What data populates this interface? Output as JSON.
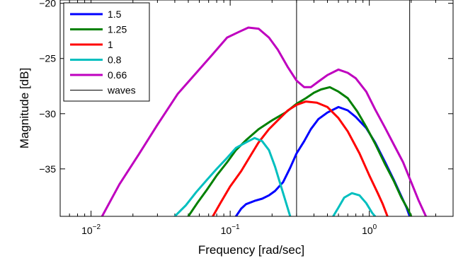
{
  "chart_data": {
    "type": "line",
    "title": "",
    "xlabel": "Frequency [rad/sec]",
    "ylabel": "Magnitude [dB]",
    "xscale": "log",
    "xlim": [
      0.006,
      4.0
    ],
    "ylim": [
      -39.3,
      -19.7
    ],
    "grid": false,
    "legend_placement": "top-left",
    "x_ticks": [
      {
        "value": 0.01,
        "base": "10",
        "exp": "−2"
      },
      {
        "value": 0.1,
        "base": "10",
        "exp": "−1"
      },
      {
        "value": 1,
        "base": "10",
        "exp": "0"
      }
    ],
    "y_ticks": [
      {
        "value": -20,
        "label": "−20"
      },
      {
        "value": -25,
        "label": "−25"
      },
      {
        "value": -30,
        "label": "−30"
      },
      {
        "value": -35,
        "label": "−35"
      }
    ],
    "series": [
      {
        "name": "1.5",
        "color": "#0000ff",
        "points": [
          [
            0.11,
            -39.3
          ],
          [
            0.12,
            -38.6
          ],
          [
            0.13,
            -38.2
          ],
          [
            0.15,
            -37.9
          ],
          [
            0.17,
            -37.7
          ],
          [
            0.19,
            -37.4
          ],
          [
            0.21,
            -37.0
          ],
          [
            0.24,
            -36.2
          ],
          [
            0.27,
            -34.9
          ],
          [
            0.3,
            -33.6
          ],
          [
            0.34,
            -32.5
          ],
          [
            0.38,
            -31.4
          ],
          [
            0.43,
            -30.5
          ],
          [
            0.5,
            -29.9
          ],
          [
            0.6,
            -29.4
          ],
          [
            0.7,
            -29.7
          ],
          [
            0.8,
            -30.3
          ],
          [
            0.95,
            -31.3
          ],
          [
            1.1,
            -32.6
          ],
          [
            1.3,
            -34.4
          ],
          [
            1.5,
            -36.0
          ],
          [
            1.7,
            -37.5
          ],
          [
            1.85,
            -38.5
          ],
          [
            1.95,
            -39.3
          ]
        ]
      },
      {
        "name": "1.25",
        "color": "#008000",
        "points": [
          [
            0.05,
            -39.3
          ],
          [
            0.058,
            -38.1
          ],
          [
            0.068,
            -36.9
          ],
          [
            0.08,
            -35.6
          ],
          [
            0.095,
            -34.4
          ],
          [
            0.11,
            -33.3
          ],
          [
            0.13,
            -32.4
          ],
          [
            0.16,
            -31.4
          ],
          [
            0.2,
            -30.6
          ],
          [
            0.25,
            -29.9
          ],
          [
            0.3,
            -29.1
          ],
          [
            0.35,
            -28.6
          ],
          [
            0.4,
            -28.1
          ],
          [
            0.45,
            -27.8
          ],
          [
            0.52,
            -27.6
          ],
          [
            0.6,
            -28.0
          ],
          [
            0.7,
            -28.6
          ],
          [
            0.82,
            -29.8
          ],
          [
            0.95,
            -31.2
          ],
          [
            1.1,
            -32.7
          ],
          [
            1.3,
            -34.6
          ],
          [
            1.5,
            -36.1
          ],
          [
            1.7,
            -37.6
          ],
          [
            1.9,
            -38.7
          ],
          [
            2.0,
            -39.3
          ]
        ]
      },
      {
        "name": "1",
        "color": "#ff0000",
        "points": [
          [
            0.075,
            -39.3
          ],
          [
            0.085,
            -38.1
          ],
          [
            0.1,
            -36.6
          ],
          [
            0.12,
            -35.2
          ],
          [
            0.14,
            -33.8
          ],
          [
            0.16,
            -32.6
          ],
          [
            0.19,
            -31.4
          ],
          [
            0.22,
            -30.6
          ],
          [
            0.26,
            -29.7
          ],
          [
            0.3,
            -29.2
          ],
          [
            0.35,
            -28.9
          ],
          [
            0.42,
            -29.0
          ],
          [
            0.5,
            -29.4
          ],
          [
            0.6,
            -30.4
          ],
          [
            0.7,
            -31.6
          ],
          [
            0.85,
            -33.6
          ],
          [
            1.0,
            -35.6
          ],
          [
            1.15,
            -37.2
          ],
          [
            1.25,
            -38.2
          ],
          [
            1.35,
            -39.3
          ]
        ]
      },
      {
        "name": "0.8",
        "color": "#00bfbf",
        "segments": [
          [
            [
              0.04,
              -39.3
            ],
            [
              0.048,
              -38.3
            ],
            [
              0.057,
              -37.1
            ],
            [
              0.068,
              -36.0
            ],
            [
              0.08,
              -35.0
            ],
            [
              0.095,
              -34.0
            ],
            [
              0.11,
              -33.1
            ],
            [
              0.13,
              -32.6
            ],
            [
              0.15,
              -32.2
            ],
            [
              0.17,
              -32.5
            ],
            [
              0.19,
              -33.3
            ],
            [
              0.21,
              -34.8
            ],
            [
              0.24,
              -37.2
            ],
            [
              0.27,
              -39.3
            ]
          ],
          [
            [
              0.55,
              -39.3
            ],
            [
              0.6,
              -38.5
            ],
            [
              0.66,
              -37.6
            ],
            [
              0.75,
              -37.2
            ],
            [
              0.85,
              -37.4
            ],
            [
              0.95,
              -38.1
            ],
            [
              1.05,
              -39.0
            ],
            [
              1.1,
              -39.3
            ]
          ]
        ]
      },
      {
        "name": "0.66",
        "color": "#bf00bf",
        "points": [
          [
            0.012,
            -39.3
          ],
          [
            0.016,
            -36.4
          ],
          [
            0.022,
            -33.7
          ],
          [
            0.03,
            -31.0
          ],
          [
            0.042,
            -28.2
          ],
          [
            0.058,
            -26.2
          ],
          [
            0.075,
            -24.6
          ],
          [
            0.095,
            -23.1
          ],
          [
            0.115,
            -22.6
          ],
          [
            0.135,
            -22.2
          ],
          [
            0.16,
            -22.3
          ],
          [
            0.19,
            -23.1
          ],
          [
            0.22,
            -24.2
          ],
          [
            0.26,
            -25.8
          ],
          [
            0.3,
            -27.0
          ],
          [
            0.34,
            -27.6
          ],
          [
            0.38,
            -27.6
          ],
          [
            0.43,
            -27.1
          ],
          [
            0.5,
            -26.5
          ],
          [
            0.6,
            -26.0
          ],
          [
            0.7,
            -26.3
          ],
          [
            0.8,
            -26.8
          ],
          [
            0.95,
            -28.0
          ],
          [
            1.1,
            -29.6
          ],
          [
            1.3,
            -31.3
          ],
          [
            1.5,
            -32.8
          ],
          [
            1.75,
            -34.4
          ],
          [
            2.0,
            -36.2
          ],
          [
            2.25,
            -37.8
          ],
          [
            2.55,
            -39.3
          ]
        ]
      }
    ],
    "reference_lines": {
      "name": "waves",
      "color": "#000000",
      "x": [
        0.3,
        1.95
      ]
    }
  }
}
